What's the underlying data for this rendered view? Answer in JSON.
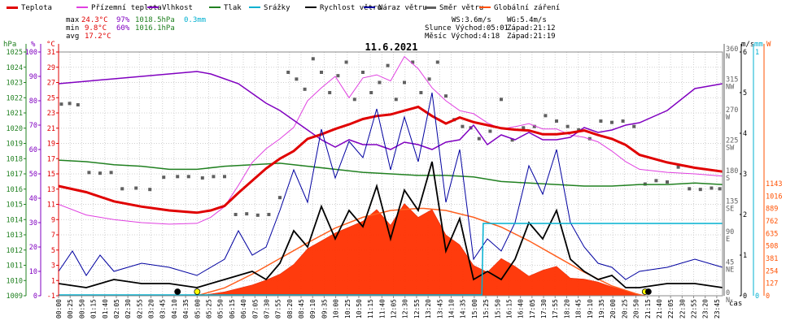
{
  "legend": [
    {
      "label": "Teplota",
      "color": "#e00000"
    },
    {
      "label": "Přízemní teplota",
      "color": "#e040e0"
    },
    {
      "label": "Vlhkost",
      "color": "#8000c0"
    },
    {
      "label": "Tlak",
      "color": "#208020"
    },
    {
      "label": "Srážky",
      "color": "#00b0d0"
    },
    {
      "label": "Rychlost větru",
      "color": "#000000"
    },
    {
      "label": "Náraz větru",
      "color": "#0000a0"
    },
    {
      "label": "Směr větru",
      "color": "#606060"
    },
    {
      "label": "Globální záření",
      "color": "#ff5000"
    }
  ],
  "stats": {
    "max": {
      "label": "max",
      "temp": "24.3°C",
      "hum": "97%",
      "press": "1018.5hPa"
    },
    "min": {
      "label": "min",
      "temp": "9.8°C",
      "hum": "60%",
      "press": "1016.1hPa"
    },
    "avg": {
      "label": "avg",
      "temp": "17.2°C"
    },
    "rain": "0.3mm"
  },
  "astro": {
    "ws": "WS:3.6m/s",
    "wg": "WG:5.4m/s",
    "sun_rise": "Slunce Východ:05:01",
    "sun_set": "Západ:21:12",
    "moon_rise": "Měsíc Východ:4:18",
    "moon_set": "Západ:21:19"
  },
  "units": {
    "hpa": "hPa",
    "percent": "%",
    "celsius": "°C",
    "ms": "m/s",
    "mm": "mm",
    "w": "W"
  },
  "chart_data": {
    "type": "line",
    "title": "11.6.2021",
    "xlabel": "čas",
    "x_tick_labels": [
      "00:00",
      "00:25",
      "00:50",
      "01:15",
      "01:40",
      "02:05",
      "02:30",
      "02:55",
      "03:20",
      "03:45",
      "04:10",
      "04:35",
      "05:00",
      "05:25",
      "05:50",
      "06:15",
      "06:40",
      "07:05",
      "07:30",
      "07:55",
      "08:20",
      "08:45",
      "09:10",
      "09:35",
      "10:00",
      "10:25",
      "10:50",
      "11:15",
      "11:40",
      "12:05",
      "12:30",
      "12:55",
      "13:20",
      "13:45",
      "14:10",
      "14:35",
      "15:00",
      "15:25",
      "15:50",
      "16:15",
      "16:40",
      "17:05",
      "17:30",
      "17:55",
      "18:20",
      "18:45",
      "19:10",
      "19:35",
      "20:00",
      "20:25",
      "20:50",
      "21:15",
      "21:40",
      "22:05",
      "22:30",
      "22:55",
      "23:20",
      "23:45"
    ],
    "axes": {
      "pressure_hpa": {
        "range": [
          1009,
          1025
        ],
        "ticks": [
          "1025",
          "1024",
          "1023",
          "1022",
          "1021",
          "1020",
          "1019",
          "1018",
          "1017",
          "1016",
          "1015",
          "1014",
          "1013",
          "1012",
          "1011",
          "1010",
          "1009"
        ]
      },
      "humidity_pct": {
        "range": [
          0,
          100
        ],
        "ticks": [
          "100",
          "90",
          "80",
          "70",
          "60",
          "50",
          "40",
          "30",
          "20",
          "10",
          "0"
        ]
      },
      "temperature_c": {
        "range": [
          -1,
          31
        ],
        "ticks": [
          "31",
          "29",
          "27",
          "25",
          "23",
          "21",
          "19",
          "17",
          "15",
          "13",
          "11",
          "9",
          "7",
          "5",
          "3",
          "1",
          "-1"
        ]
      },
      "wind_dir_deg": {
        "range": [
          0,
          360
        ],
        "ticks": [
          {
            "deg": "360",
            "dir": "N"
          },
          {
            "deg": "315",
            "dir": "NW"
          },
          {
            "deg": "270",
            "dir": "W"
          },
          {
            "deg": "225",
            "dir": "SW"
          },
          {
            "deg": "180",
            "dir": "S"
          },
          {
            "deg": "135",
            "dir": "SE"
          },
          {
            "deg": "90",
            "dir": "E"
          },
          {
            "deg": "45",
            "dir": "NE"
          },
          {
            "deg": "0",
            "dir": "N"
          }
        ]
      },
      "wind_ms": {
        "range": [
          0,
          6
        ],
        "ticks": [
          "6",
          "5",
          "4",
          "3",
          "2",
          "1",
          "0"
        ]
      },
      "rain_mm": {
        "range": [
          0,
          1
        ],
        "ticks": [
          "1",
          "0"
        ]
      },
      "radiation_w": {
        "range": [
          0,
          1143
        ],
        "ticks": [
          "1143",
          "1016",
          "889",
          "762",
          "635",
          "508",
          "381",
          "254",
          "127",
          "0"
        ]
      },
      "grid": true
    },
    "series": [
      {
        "name": "Teplota",
        "unit": "°C",
        "color": "#e00000",
        "t": [
          0,
          1,
          2,
          3,
          4,
          5,
          5.5,
          6,
          6.5,
          7,
          7.5,
          8,
          8.5,
          9,
          9.5,
          10,
          10.5,
          11,
          11.5,
          12,
          12.5,
          13,
          13.5,
          14,
          14.5,
          15,
          15.5,
          16,
          16.5,
          17,
          17.5,
          18,
          18.5,
          19,
          19.5,
          20,
          20.5,
          21,
          22,
          23,
          24
        ],
        "values": [
          13.4,
          12.6,
          11.4,
          10.7,
          10.2,
          9.9,
          10.2,
          10.8,
          12.5,
          14.1,
          15.7,
          17.0,
          18.0,
          19.6,
          20.2,
          20.9,
          21.5,
          22.2,
          22.6,
          22.8,
          23.3,
          23.8,
          22.6,
          21.6,
          22.4,
          21.8,
          21.4,
          21.0,
          20.8,
          20.7,
          20.2,
          20.2,
          20.4,
          20.7,
          20.1,
          19.6,
          18.8,
          17.5,
          16.5,
          15.8,
          15.3
        ]
      },
      {
        "name": "Přízemní teplota",
        "unit": "°C",
        "color": "#e040e0",
        "t": [
          0,
          1,
          2,
          3,
          4,
          5,
          5.5,
          6,
          6.5,
          7,
          7.5,
          8,
          8.5,
          9,
          9.5,
          10,
          10.5,
          11,
          11.5,
          12,
          12.5,
          13,
          13.5,
          14,
          14.5,
          15,
          15.5,
          16,
          16.5,
          17,
          17.5,
          18,
          18.5,
          19,
          19.5,
          20,
          20.5,
          21,
          22,
          23,
          24
        ],
        "values": [
          11.0,
          9.6,
          9.0,
          8.6,
          8.4,
          8.5,
          9.3,
          10.7,
          13.5,
          16.5,
          18.3,
          19.6,
          21.1,
          24.6,
          26.3,
          27.8,
          25.0,
          27.6,
          28.0,
          27.2,
          30.4,
          28.8,
          26.3,
          24.6,
          23.3,
          22.9,
          21.7,
          20.9,
          21.2,
          21.6,
          20.9,
          20.9,
          20.1,
          19.8,
          19.2,
          18.0,
          16.6,
          15.6,
          15.2,
          15.0,
          14.7
        ]
      },
      {
        "name": "Vlhkost",
        "unit": "%",
        "color": "#8000c0",
        "t": [
          0,
          1,
          2,
          3,
          4,
          5,
          5.5,
          6,
          6.5,
          7,
          7.5,
          8,
          8.5,
          9,
          9.5,
          10,
          10.5,
          11,
          11.5,
          12,
          12.5,
          13,
          13.5,
          14,
          14.5,
          15,
          15.5,
          16,
          16.5,
          17,
          17.5,
          18,
          18.5,
          19,
          19.5,
          20,
          20.5,
          21,
          22,
          23,
          24
        ],
        "values": [
          87,
          88,
          89,
          90,
          91,
          92,
          91,
          89,
          87,
          83,
          79,
          76,
          72,
          68,
          64,
          61,
          64,
          62,
          62,
          60,
          63,
          62,
          60,
          63,
          64,
          70,
          62,
          66,
          64,
          67,
          64,
          64,
          65,
          69,
          67,
          68,
          70,
          71,
          76,
          85,
          87
        ]
      },
      {
        "name": "Tlak",
        "unit": "hPa",
        "color": "#208020",
        "t": [
          0,
          1,
          2,
          3,
          4,
          5,
          6,
          7,
          8,
          9,
          10,
          11,
          12,
          13,
          14,
          15,
          16,
          17,
          18,
          19,
          20,
          21,
          22,
          23,
          24
        ],
        "values": [
          1017.9,
          1017.8,
          1017.6,
          1017.5,
          1017.3,
          1017.3,
          1017.5,
          1017.6,
          1017.7,
          1017.5,
          1017.3,
          1017.1,
          1017.0,
          1016.9,
          1016.9,
          1016.8,
          1016.5,
          1016.4,
          1016.3,
          1016.2,
          1016.2,
          1016.3,
          1016.3,
          1016.4,
          1016.3
        ]
      },
      {
        "name": "Srážky",
        "unit": "mm",
        "color": "#00b0d0",
        "t": [
          0,
          15.3,
          15.35,
          24
        ],
        "values": [
          0,
          0,
          0.3,
          0.3
        ]
      },
      {
        "name": "Rychlost větru",
        "unit": "m/s",
        "color": "#000000",
        "t": [
          0,
          1,
          2,
          3,
          4,
          5,
          6,
          7,
          7.5,
          8,
          8.5,
          9,
          9.5,
          10,
          10.5,
          11,
          11.5,
          12,
          12.5,
          13,
          13.5,
          14,
          14.5,
          15,
          15.5,
          16,
          16.5,
          17,
          17.5,
          18,
          18.5,
          19,
          19.5,
          20,
          20.5,
          21,
          22,
          23,
          24
        ],
        "values": [
          0.3,
          0.2,
          0.4,
          0.3,
          0.3,
          0.2,
          0.4,
          0.6,
          0.4,
          0.8,
          1.6,
          1.2,
          2.2,
          1.4,
          2.1,
          1.7,
          2.7,
          1.4,
          2.6,
          2.1,
          3.3,
          1.1,
          1.9,
          0.4,
          0.6,
          0.4,
          0.9,
          1.8,
          1.4,
          2.1,
          0.9,
          0.6,
          0.4,
          0.5,
          0.2,
          0.2,
          0.3,
          0.3,
          0.2
        ]
      },
      {
        "name": "Náraz větru",
        "unit": "m/s",
        "color": "#0000a0",
        "t": [
          0,
          0.5,
          1,
          1.5,
          2,
          3,
          4,
          5,
          6,
          6.5,
          7,
          7.5,
          8,
          8.5,
          9,
          9.5,
          10,
          10.5,
          11,
          11.5,
          12,
          12.5,
          13,
          13.5,
          14,
          14.5,
          15,
          15.5,
          16,
          16.5,
          17,
          17.5,
          18,
          18.5,
          19,
          19.5,
          20,
          20.5,
          21,
          22,
          23,
          24
        ],
        "values": [
          0.6,
          1.1,
          0.5,
          1.0,
          0.6,
          0.8,
          0.7,
          0.5,
          0.9,
          1.6,
          1.0,
          1.2,
          2.1,
          3.1,
          2.3,
          4.1,
          2.9,
          3.8,
          3.4,
          4.6,
          3.1,
          4.4,
          3.3,
          5.0,
          2.3,
          3.6,
          0.9,
          1.4,
          1.1,
          1.8,
          3.2,
          2.5,
          3.6,
          1.8,
          1.2,
          0.8,
          0.7,
          0.4,
          0.6,
          0.7,
          0.9,
          0.7
        ]
      },
      {
        "name": "Globální záření",
        "unit": "W",
        "color": "#ff5000",
        "t": [
          0,
          4.8,
          5.2,
          6,
          7,
          7.5,
          8,
          8.5,
          9,
          9.5,
          10,
          10.5,
          11,
          11.5,
          12,
          12.5,
          13,
          13.5,
          14,
          14.5,
          15,
          15.5,
          16,
          16.5,
          17,
          17.5,
          18,
          18.5,
          19,
          19.5,
          20,
          20.5,
          21,
          21.2,
          24
        ],
        "values": [
          0,
          0,
          5,
          40,
          110,
          160,
          220,
          320,
          480,
          560,
          640,
          700,
          760,
          880,
          720,
          940,
          800,
          880,
          620,
          520,
          310,
          240,
          380,
          300,
          200,
          260,
          300,
          180,
          170,
          140,
          90,
          50,
          15,
          0,
          0
        ]
      },
      {
        "name": "Theoretical clear-sky radiation",
        "unit": "W",
        "color": "#ff5000",
        "t": [
          5.0,
          6,
          7,
          8,
          9,
          10,
          11,
          12,
          13,
          13.2,
          14,
          15,
          16,
          17,
          18,
          19,
          20,
          21,
          21.2
        ],
        "values": [
          0,
          80,
          220,
          380,
          540,
          690,
          800,
          870,
          890,
          890,
          870,
          800,
          700,
          560,
          400,
          240,
          100,
          10,
          0
        ]
      },
      {
        "name": "Směr větru",
        "unit": "°",
        "color": "#606060",
        "t": [
          0.1,
          0.4,
          0.7,
          1.1,
          1.5,
          1.9,
          2.3,
          2.8,
          3.3,
          3.8,
          4.3,
          4.7,
          5.2,
          5.6,
          6.0,
          6.4,
          6.8,
          7.2,
          7.6,
          8.0,
          8.3,
          8.6,
          8.9,
          9.2,
          9.5,
          9.8,
          10.1,
          10.4,
          10.7,
          11.0,
          11.3,
          11.6,
          11.9,
          12.2,
          12.5,
          12.8,
          13.1,
          13.4,
          13.7,
          14.0,
          14.3,
          14.6,
          14.9,
          15.2,
          15.6,
          16.0,
          16.4,
          16.8,
          17.2,
          17.6,
          18.0,
          18.4,
          18.8,
          19.2,
          19.6,
          20.0,
          20.4,
          20.8,
          21.2,
          21.6,
          22.0,
          22.4,
          22.8,
          23.2,
          23.6,
          23.9
        ],
        "values": [
          283,
          284,
          282,
          182,
          181,
          182,
          158,
          159,
          157,
          175,
          176,
          176,
          174,
          176,
          176,
          120,
          121,
          119,
          120,
          145,
          330,
          320,
          305,
          350,
          330,
          300,
          325,
          345,
          290,
          330,
          300,
          315,
          340,
          290,
          315,
          345,
          300,
          320,
          345,
          295,
          260,
          250,
          248,
          232,
          243,
          290,
          230,
          248,
          250,
          266,
          258,
          250,
          245,
          232,
          258,
          256,
          258,
          250,
          165,
          170,
          168,
          190,
          158,
          157,
          159,
          158
        ]
      }
    ],
    "markers": [
      {
        "name": "sunrise",
        "time": 5.01,
        "color": "#ffff00"
      },
      {
        "name": "sunset",
        "time": 21.2,
        "color": "#ffff00"
      },
      {
        "name": "moonrise",
        "time": 4.3,
        "color": "#000000"
      },
      {
        "name": "moonset",
        "time": 21.32,
        "color": "#000000"
      }
    ]
  }
}
